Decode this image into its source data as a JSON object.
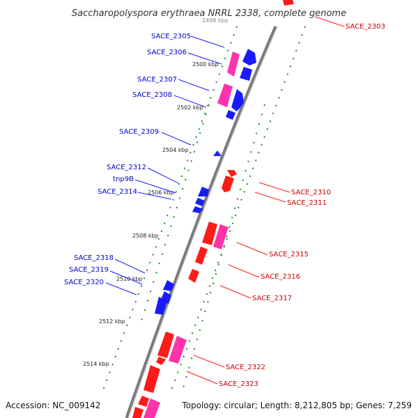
{
  "title": "Saccharopolyspora erythraea NRRL 2338, complete genome",
  "footer": {
    "accession": "Accession: NC_009142",
    "summary": "Topology: circular; Length: 8,212,805 bp; Genes: 7,259"
  },
  "colors": {
    "plus_strand_label": "#0000cc",
    "minus_strand_label": "#cc0000",
    "gene_blue": "#1a1aff",
    "gene_red": "#ff1a1a",
    "gene_pink": "#ff33aa",
    "tick_green": "#1a8a1a",
    "backbone": "#808080"
  },
  "ticks": [
    "2498 kbp",
    "2500 kbp",
    "2502 kbp",
    "2504 kbp",
    "2506 kbp",
    "2508 kbp",
    "2510 kbp",
    "2512 kbp",
    "2514 kbp"
  ],
  "genes_left": [
    "SACE_2305",
    "SACE_2306",
    "SACE_2307",
    "SACE_2308",
    "SACE_2309",
    "SACE_2312",
    "tnp9B",
    "SACE_2314",
    "SACE_2318",
    "SACE_2319",
    "SACE_2320"
  ],
  "genes_right": [
    "SACE_2303",
    "SACE_2310",
    "SACE_2311",
    "SACE_2315",
    "SACE_2316",
    "SACE_2317",
    "SACE_2322",
    "SACE_2323"
  ]
}
